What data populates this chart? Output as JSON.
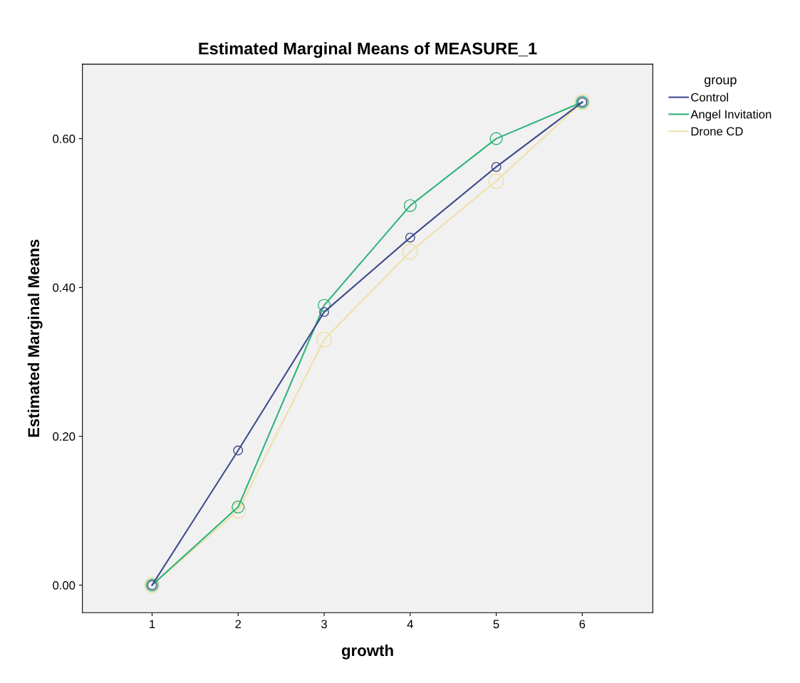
{
  "chart_data": {
    "type": "line",
    "title": "Estimated Marginal Means of MEASURE_1",
    "xlabel": "growth",
    "ylabel": "Estimated Marginal Means",
    "legend_title": "group",
    "categories": [
      "1",
      "2",
      "3",
      "4",
      "5",
      "6"
    ],
    "series": [
      {
        "name": "Control",
        "color": "#3d4a8a",
        "values": [
          0.0,
          0.181,
          0.367,
          0.467,
          0.562,
          0.649
        ]
      },
      {
        "name": "Angel Invitation",
        "color": "#2eb27a",
        "values": [
          0.0,
          0.105,
          0.376,
          0.51,
          0.6,
          0.649
        ]
      },
      {
        "name": "Drone CD",
        "color": "#efe0a8",
        "values": [
          0.0,
          0.1,
          0.33,
          0.448,
          0.543,
          0.649
        ]
      }
    ],
    "ylim": [
      -0.037,
      0.7
    ],
    "yticks": [
      {
        "value": 0,
        "label": "0.00"
      },
      {
        "value": 0.2,
        "label": "0.20"
      },
      {
        "value": 0.4,
        "label": "0.40"
      },
      {
        "value": 0.6,
        "label": "0.60"
      }
    ],
    "marker": "circle",
    "line_style": "solid",
    "grid": false,
    "legend": "right"
  }
}
